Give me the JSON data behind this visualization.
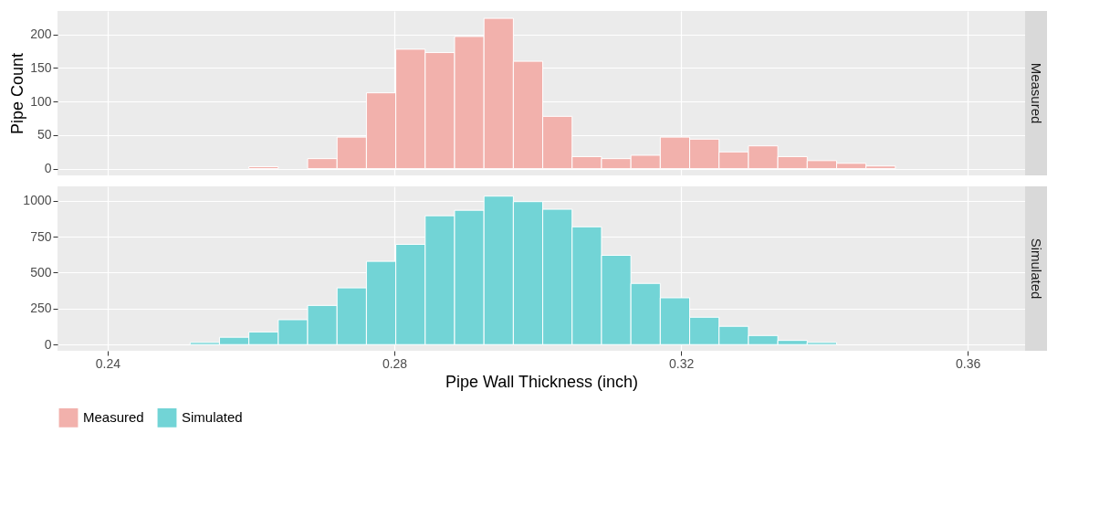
{
  "chart_data": [
    {
      "type": "histogram",
      "ylabel": "Pipe Count",
      "bins": [
        0.2515,
        0.2556,
        0.2597,
        0.2638,
        0.2679,
        0.272,
        0.2761,
        0.2802,
        0.2843,
        0.2884,
        0.2925,
        0.2966,
        0.3007,
        0.3048,
        0.3089,
        0.313,
        0.3171,
        0.3212,
        0.3253,
        0.3294,
        0.3335,
        0.3376,
        0.3417,
        0.3458,
        0.3499
      ],
      "series": [
        {
          "name": "Measured",
          "color": "#f2b1ac",
          "values": [
            0,
            0,
            3,
            0,
            15,
            47,
            113,
            178,
            173,
            197,
            224,
            160,
            78,
            18,
            15,
            20,
            47,
            44,
            25,
            34,
            18,
            12,
            8,
            4
          ]
        }
      ],
      "xlim": [
        0.233,
        0.368
      ],
      "xticks": [
        0.24,
        0.28,
        0.32,
        0.36
      ],
      "ylim": [
        -10,
        235
      ],
      "yticks": [
        0,
        50,
        100,
        150,
        200
      ],
      "grid": true,
      "tick_labels": "y"
    },
    {
      "type": "histogram",
      "xlabel": "Pipe Wall Thickness (inch)",
      "bins": [
        0.2515,
        0.2556,
        0.2597,
        0.2638,
        0.2679,
        0.272,
        0.2761,
        0.2802,
        0.2843,
        0.2884,
        0.2925,
        0.2966,
        0.3007,
        0.3048,
        0.3089,
        0.313,
        0.3171,
        0.3212,
        0.3253,
        0.3294,
        0.3335,
        0.3376,
        0.3417,
        0.3458,
        0.3499
      ],
      "series": [
        {
          "name": "Simulated",
          "color": "#72d4d6",
          "values": [
            15,
            51,
            88,
            173,
            272,
            394,
            578,
            696,
            895,
            933,
            1031,
            993,
            940,
            818,
            620,
            425,
            325,
            190,
            127,
            63,
            29,
            15,
            0,
            0
          ]
        }
      ],
      "xlim": [
        0.233,
        0.368
      ],
      "xticks": [
        0.24,
        0.28,
        0.32,
        0.36
      ],
      "ylim": [
        -43,
        1099
      ],
      "yticks": [
        0,
        250,
        500,
        750,
        1000
      ],
      "grid": true,
      "legend": "bottom"
    }
  ]
}
